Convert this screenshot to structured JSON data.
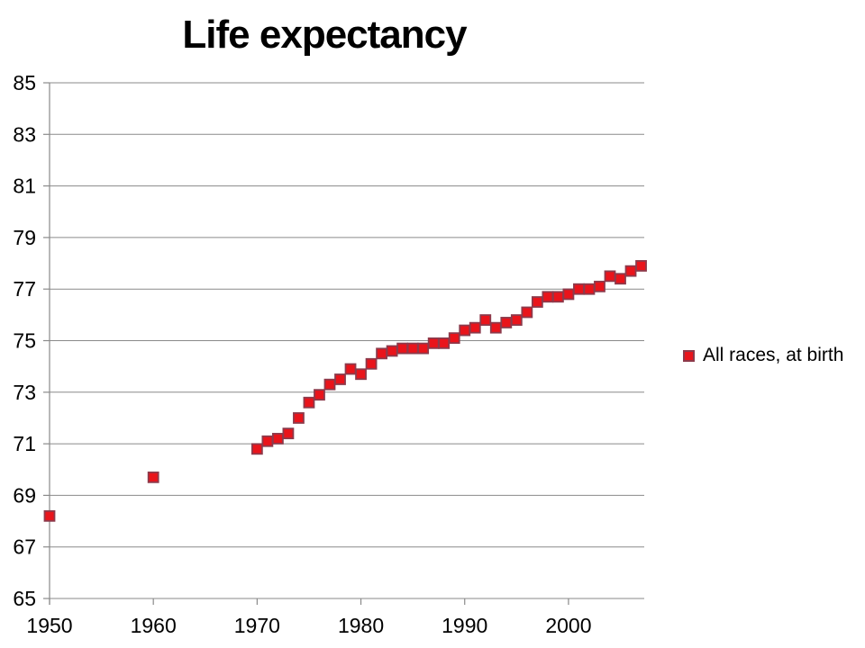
{
  "title": "Life expectancy",
  "legend": {
    "label": "All races, at birth",
    "marker_icon": "red-square-marker"
  },
  "colors": {
    "background": "#ffffff",
    "marker_fill": "#e9141b",
    "marker_border": "#8d3a4b",
    "gridline": "#8a8a8a",
    "axis": "#8a8a8a",
    "text": "#000000"
  },
  "chart_data": {
    "type": "scatter",
    "title": "Life expectancy",
    "xlabel": "",
    "ylabel": "",
    "xlim": [
      1950,
      2007.3
    ],
    "ylim": [
      65,
      85
    ],
    "xticks": [
      1950,
      1960,
      1970,
      1980,
      1990,
      2000
    ],
    "yticks": [
      65,
      67,
      69,
      71,
      73,
      75,
      77,
      79,
      81,
      83,
      85
    ],
    "grid": "horizontal-only",
    "legend_position": "right-middle",
    "series": [
      {
        "name": "All races, at birth",
        "marker": "square",
        "points": [
          [
            1950,
            68.2
          ],
          [
            1960,
            69.7
          ],
          [
            1970,
            70.8
          ],
          [
            1971,
            71.1
          ],
          [
            1972,
            71.2
          ],
          [
            1973,
            71.4
          ],
          [
            1974,
            72.0
          ],
          [
            1975,
            72.6
          ],
          [
            1976,
            72.9
          ],
          [
            1977,
            73.3
          ],
          [
            1978,
            73.5
          ],
          [
            1979,
            73.9
          ],
          [
            1980,
            73.7
          ],
          [
            1981,
            74.1
          ],
          [
            1982,
            74.5
          ],
          [
            1983,
            74.6
          ],
          [
            1984,
            74.7
          ],
          [
            1985,
            74.7
          ],
          [
            1986,
            74.7
          ],
          [
            1987,
            74.9
          ],
          [
            1988,
            74.9
          ],
          [
            1989,
            75.1
          ],
          [
            1990,
            75.4
          ],
          [
            1991,
            75.5
          ],
          [
            1992,
            75.8
          ],
          [
            1993,
            75.5
          ],
          [
            1994,
            75.7
          ],
          [
            1995,
            75.8
          ],
          [
            1996,
            76.1
          ],
          [
            1997,
            76.5
          ],
          [
            1998,
            76.7
          ],
          [
            1999,
            76.7
          ],
          [
            2000,
            76.8
          ],
          [
            2001,
            77.0
          ],
          [
            2002,
            77.0
          ],
          [
            2003,
            77.1
          ],
          [
            2004,
            77.5
          ],
          [
            2005,
            77.4
          ],
          [
            2006,
            77.7
          ],
          [
            2007,
            77.9
          ]
        ]
      }
    ]
  }
}
